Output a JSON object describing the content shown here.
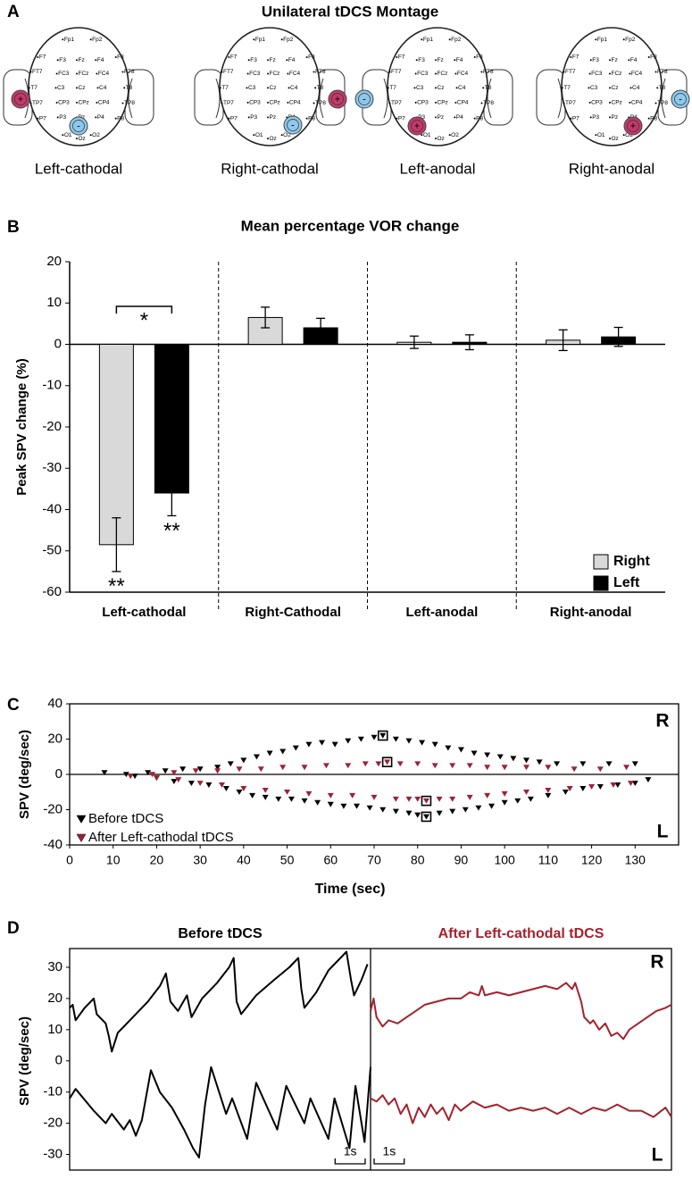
{
  "panel_labels": [
    "A",
    "B",
    "C",
    "D"
  ],
  "montage": {
    "title": "Unilateral tDCS Montage",
    "electrodes": [
      "Fp1",
      "Fp2",
      "F7",
      "F3",
      "Fz",
      "F4",
      "F8",
      "FT7",
      "FC3",
      "FCz",
      "FC4",
      "FT8",
      "T7",
      "C3",
      "Cz",
      "C4",
      "T8",
      "TP7",
      "CP3",
      "CPz",
      "CP4",
      "TP8",
      "P7",
      "P3",
      "Pz",
      "P4",
      "P8",
      "O1",
      "Oz",
      "O2"
    ],
    "anode_symbol": "+",
    "cathode_symbol": "-",
    "labels": [
      "Left-cathodal",
      "Right-cathodal",
      "Left-anodal",
      "Right-anodal"
    ]
  },
  "chart_data": [
    {
      "type": "bar",
      "title": "Mean percentage VOR change",
      "y_label": "Peak SPV change (%)",
      "categories": [
        "Left-cathodal",
        "Right-Cathodal",
        "Left-anodal",
        "Right-anodal"
      ],
      "series": [
        {
          "name": "Right",
          "color": "#d9d9d9",
          "values": [
            -48.5,
            6.5,
            0.5,
            1.0
          ],
          "errors": [
            6.5,
            2.5,
            1.5,
            2.5
          ]
        },
        {
          "name": "Left",
          "color": "#000000",
          "values": [
            -36,
            4.0,
            0.5,
            1.8
          ],
          "errors": [
            5.5,
            2.3,
            1.8,
            2.3
          ]
        }
      ],
      "ylim": [
        -60,
        20
      ],
      "yticks": [
        -60,
        -50,
        -40,
        -30,
        -20,
        -10,
        0,
        10,
        20
      ],
      "annotations": [
        "*",
        "**",
        "**"
      ],
      "legend": "bottom-right"
    },
    {
      "type": "scatter",
      "y_label": "SPV (deg/sec)",
      "x_label": "Time (sec)",
      "xlim": [
        0,
        140
      ],
      "xticks": [
        0,
        10,
        20,
        30,
        40,
        50,
        60,
        70,
        80,
        90,
        100,
        110,
        120,
        130
      ],
      "ylim": [
        -40,
        40
      ],
      "yticks": [
        -40,
        -20,
        0,
        20,
        40
      ],
      "annotations": [
        "R",
        "L"
      ],
      "legend": "bottom-left",
      "series": [
        {
          "name": "Before tDCS",
          "color": "#000000",
          "x": [
            8,
            13,
            18,
            22,
            26,
            30,
            34,
            37,
            40,
            43,
            46,
            49,
            52,
            55,
            58,
            61,
            64,
            67,
            70,
            72,
            75,
            78,
            81,
            84,
            87,
            90,
            93,
            96,
            99,
            102,
            105,
            108,
            112,
            118,
            124,
            130,
            15,
            20,
            24,
            28,
            32,
            36,
            39,
            42,
            45,
            48,
            51,
            54,
            57,
            60,
            63,
            66,
            69,
            72,
            75,
            78,
            80,
            82,
            85,
            88,
            91,
            94,
            97,
            100,
            103,
            106,
            110,
            114,
            118,
            122,
            126,
            130,
            133
          ],
          "values": [
            1,
            0,
            1,
            2,
            3,
            3,
            4,
            6,
            8,
            10,
            12,
            13,
            15,
            17,
            18,
            17,
            19,
            20,
            21,
            22,
            20,
            19,
            18,
            17,
            15,
            14,
            12,
            11,
            10,
            9,
            8,
            7,
            6,
            6,
            6,
            6,
            -1,
            -2,
            -4,
            -5,
            -6,
            -8,
            -10,
            -12,
            -13,
            -14,
            -14,
            -15,
            -16,
            -17,
            -18,
            -18,
            -19,
            -20,
            -21,
            -22,
            -23,
            -24,
            -22,
            -21,
            -20,
            -19,
            -18,
            -16,
            -15,
            -14,
            -12,
            -10,
            -8,
            -7,
            -6,
            -5,
            -3
          ],
          "highlight": [
            19,
            57
          ]
        },
        {
          "name": "After Left-cathodal tDCS",
          "color": "#9b2335",
          "x": [
            14,
            19,
            24,
            29,
            34,
            39,
            44,
            49,
            54,
            59,
            64,
            68,
            71,
            73,
            76,
            80,
            84,
            88,
            92,
            96,
            100,
            105,
            110,
            116,
            122,
            128,
            14,
            20,
            25,
            30,
            35,
            40,
            45,
            50,
            55,
            60,
            65,
            70,
            75,
            78,
            80,
            82,
            85,
            88,
            92,
            96,
            100,
            105,
            110,
            115,
            120,
            125,
            129
          ],
          "values": [
            -1,
            0,
            1,
            2,
            2,
            3,
            3,
            4,
            4,
            5,
            5,
            6,
            6,
            7,
            6,
            6,
            5,
            5,
            5,
            4,
            4,
            4,
            4,
            3,
            3,
            4,
            -1,
            -2,
            -3,
            -5,
            -6,
            -8,
            -9,
            -10,
            -11,
            -12,
            -12,
            -13,
            -14,
            -14,
            -14,
            -15,
            -14,
            -14,
            -13,
            -12,
            -11,
            -10,
            -9,
            -8,
            -7,
            -6,
            -5
          ],
          "highlight": [
            13,
            41
          ]
        }
      ]
    },
    {
      "type": "line",
      "y_label": "SPV (deg/sec)",
      "ylim": [
        -35,
        36
      ],
      "yticks": [
        -30,
        -20,
        -10,
        0,
        10,
        20,
        30
      ],
      "xlim": [
        0,
        10
      ],
      "scale_bar": 1,
      "scale_bar_label": "1s",
      "annotations": [
        "R",
        "L"
      ],
      "panels": [
        {
          "title": "Before tDCS",
          "color": "#000000",
          "series": [
            {
              "x": [
                0,
                0.1,
                0.2,
                0.5,
                0.8,
                0.9,
                1.2,
                1.3,
                1.4,
                1.6,
                1.8,
                2.2,
                2.6,
                3.0,
                3.2,
                3.35,
                3.6,
                3.9,
                4.05,
                4.4,
                4.9,
                5.3,
                5.45,
                5.55,
                5.7,
                6.2,
                6.8,
                7.3,
                7.6,
                7.7,
                7.8,
                8.2,
                8.6,
                9.0,
                9.2,
                9.35,
                9.45,
                9.7,
                9.9
              ],
              "values": [
                17,
                18,
                13,
                17,
                20,
                15,
                12,
                8,
                3,
                9,
                11,
                15,
                19,
                24,
                28,
                19,
                16,
                21,
                14,
                20,
                25,
                30,
                33,
                19,
                15,
                21,
                26,
                30,
                33,
                23,
                17,
                22,
                29,
                33,
                35,
                26,
                21,
                26,
                31
              ]
            },
            {
              "x": [
                0,
                0.2,
                0.8,
                1.2,
                1.4,
                1.8,
                2.0,
                2.2,
                2.4,
                2.7,
                3.0,
                3.4,
                3.8,
                4.1,
                4.3,
                4.5,
                4.7,
                5.2,
                5.4,
                5.9,
                6.2,
                6.9,
                7.2,
                7.8,
                8.0,
                8.6,
                8.8,
                9.3,
                9.5,
                9.8,
                10.0
              ],
              "values": [
                -12,
                -9,
                -16,
                -20,
                -17,
                -22,
                -19,
                -24,
                -19,
                -3,
                -10,
                -15,
                -22,
                -28,
                -31,
                -14,
                -2,
                -17,
                -12,
                -25,
                -7,
                -22,
                -8,
                -20,
                -12,
                -25,
                -12,
                -28,
                -8,
                -26,
                -2
              ]
            }
          ]
        },
        {
          "title": "After Left-cathodal tDCS",
          "color": "#a3222d",
          "series": [
            {
              "x": [
                0,
                0.1,
                0.2,
                0.4,
                0.6,
                0.9,
                1.2,
                1.5,
                1.8,
                2.2,
                2.6,
                3.0,
                3.3,
                3.6,
                3.7,
                3.8,
                4.2,
                4.6,
                5.0,
                5.4,
                5.8,
                6.2,
                6.5,
                6.7,
                6.8,
                7.0,
                7.1,
                7.3,
                7.4,
                7.6,
                7.8,
                8.0,
                8.2,
                8.4,
                8.6,
                8.9,
                9.2,
                9.5,
                9.8,
                10.0
              ],
              "values": [
                16,
                20,
                14,
                11,
                13,
                12,
                14,
                16,
                18,
                19,
                20,
                20,
                22,
                21,
                24,
                21,
                22,
                21,
                22,
                23,
                24,
                23,
                25,
                23,
                25,
                19,
                14,
                12,
                13,
                10,
                12,
                8,
                9,
                7,
                10,
                12,
                14,
                16,
                17,
                18
              ]
            },
            {
              "x": [
                0,
                0.2,
                0.4,
                0.6,
                0.8,
                1.0,
                1.2,
                1.4,
                1.6,
                1.8,
                2.0,
                2.2,
                2.4,
                2.6,
                2.8,
                3.0,
                3.4,
                3.8,
                4.2,
                4.6,
                5.0,
                5.4,
                5.8,
                6.2,
                6.6,
                7.0,
                7.4,
                7.8,
                8.2,
                8.6,
                9.0,
                9.4,
                9.8,
                10.0
              ],
              "values": [
                -12,
                -13,
                -11,
                -14,
                -12,
                -17,
                -14,
                -20,
                -15,
                -18,
                -14,
                -17,
                -15,
                -19,
                -14,
                -16,
                -13,
                -15,
                -14,
                -16,
                -15,
                -16,
                -15,
                -17,
                -15,
                -17,
                -15,
                -16,
                -14,
                -16,
                -16,
                -18,
                -15,
                -18
              ]
            }
          ]
        }
      ]
    }
  ]
}
